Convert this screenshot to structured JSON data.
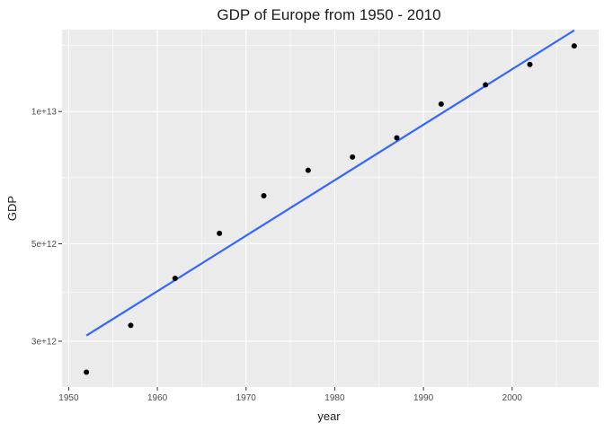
{
  "chart_data": {
    "type": "scatter",
    "title": "GDP of Europe from 1950 - 2010",
    "xlabel": "year",
    "ylabel": "GDP",
    "x_scale": "linear",
    "y_scale": "log10",
    "xlim": [
      1949.25,
      2009.75
    ],
    "ylim": [
      2360000000000.0,
      15360000000000.0
    ],
    "x_ticks": [
      1950,
      1960,
      1970,
      1980,
      1990,
      2000
    ],
    "x_tick_labels": [
      "1950",
      "1960",
      "1970",
      "1980",
      "1990",
      "2000"
    ],
    "y_ticks": [
      3000000000000.0,
      5000000000000.0,
      10000000000000.0
    ],
    "y_tick_labels": [
      "3e+12",
      "5e+12",
      "1e+13"
    ],
    "grid": true,
    "panel_background": "#ebebeb",
    "grid_color": "#ffffff",
    "point_color": "#000000",
    "series": [
      {
        "x": [
          1952,
          1957,
          1962,
          1967,
          1972,
          1977,
          1982,
          1987,
          1992,
          1997,
          2002,
          2007
        ],
        "y": [
          2550000000000.0,
          3260000000000.0,
          4170000000000.0,
          5280000000000.0,
          6430000000000.0,
          7350000000000.0,
          7880000000000.0,
          8710000000000.0,
          10400000000000.0,
          11500000000000.0,
          12800000000000.0,
          14100000000000.0
        ]
      }
    ],
    "trend_line": {
      "type": "linear-fit",
      "color": "#3366ff",
      "x": [
        1952,
        2007
      ],
      "y": [
        3090000000000.0,
        15300000000000.0
      ]
    }
  }
}
